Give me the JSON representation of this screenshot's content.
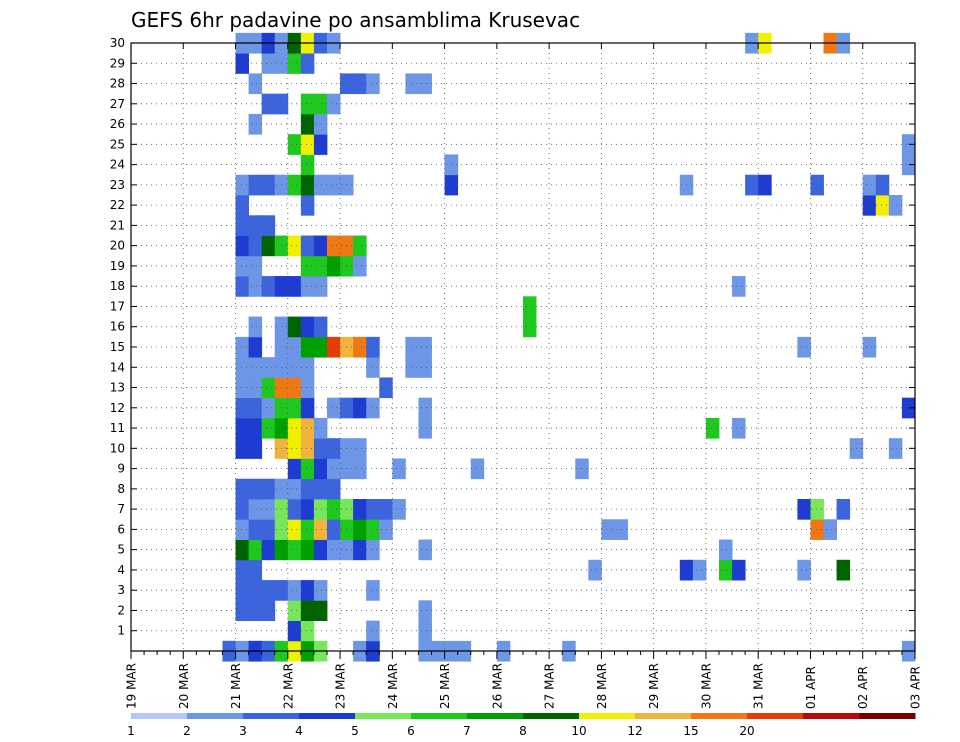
{
  "chart_data": {
    "type": "heatmap",
    "title": "GEFS 6hr padavine po ansamblima Krusevac",
    "x_tick_labels": [
      "19 MAR",
      "20 MAR",
      "21 MAR",
      "22 MAR",
      "23 MAR",
      "24 MAR",
      "25 MAR",
      "26 MAR",
      "27 MAR",
      "28 MAR",
      "29 MAR",
      "30 MAR",
      "31 MAR",
      "01 APR",
      "02 APR",
      "03 APR"
    ],
    "y_tick_labels": [
      "1",
      "2",
      "3",
      "4",
      "5",
      "6",
      "7",
      "8",
      "9",
      "10",
      "11",
      "12",
      "13",
      "14",
      "15",
      "16",
      "17",
      "18",
      "19",
      "20",
      "21",
      "22",
      "23",
      "24",
      "25",
      "26",
      "27",
      "28",
      "29",
      "30"
    ],
    "y_range": [
      0,
      30
    ],
    "time_steps": 60,
    "steps_per_day": 4,
    "grid": true,
    "colorbar": {
      "tick_labels": [
        "1",
        "2",
        "3",
        "4",
        "5",
        "6",
        "7",
        "8",
        "10",
        "12",
        "15",
        "20"
      ],
      "colors": [
        "#b4c8f5",
        "#6e96e6",
        "#3c64dc",
        "#1e3cd2",
        "#78e65a",
        "#1ec81e",
        "#00a000",
        "#006400",
        "#f0f000",
        "#f0b43c",
        "#f07814",
        "#e63c0a",
        "#b40a0a",
        "#780000"
      ]
    },
    "cells": [
      [
        0,
        7,
        1
      ],
      [
        0,
        7,
        2
      ],
      [
        0,
        8,
        1
      ],
      [
        0,
        9,
        2
      ],
      [
        0,
        9,
        3
      ],
      [
        0,
        10,
        2
      ],
      [
        0,
        11,
        5
      ],
      [
        0,
        12,
        8
      ],
      [
        0,
        13,
        6
      ],
      [
        0,
        14,
        4
      ],
      [
        0,
        17,
        1
      ],
      [
        0,
        18,
        2
      ],
      [
        0,
        18,
        3
      ],
      [
        0,
        22,
        1
      ],
      [
        0,
        23,
        1
      ],
      [
        0,
        24,
        1
      ],
      [
        0,
        25,
        1
      ],
      [
        0,
        28,
        1
      ],
      [
        0,
        33,
        1
      ],
      [
        0,
        59,
        1
      ],
      [
        1,
        12,
        3
      ],
      [
        1,
        13,
        4
      ],
      [
        1,
        18,
        1
      ],
      [
        1,
        22,
        1
      ],
      [
        2,
        8,
        2
      ],
      [
        2,
        9,
        2
      ],
      [
        2,
        10,
        2
      ],
      [
        2,
        12,
        4
      ],
      [
        2,
        13,
        7
      ],
      [
        2,
        14,
        7
      ],
      [
        2,
        22,
        1
      ],
      [
        3,
        8,
        2
      ],
      [
        3,
        9,
        2
      ],
      [
        3,
        10,
        2
      ],
      [
        3,
        11,
        2
      ],
      [
        3,
        12,
        1
      ],
      [
        3,
        13,
        3
      ],
      [
        3,
        14,
        1
      ],
      [
        3,
        18,
        1
      ],
      [
        4,
        8,
        2
      ],
      [
        4,
        9,
        2
      ],
      [
        4,
        35,
        1
      ],
      [
        4,
        42,
        3
      ],
      [
        4,
        43,
        1
      ],
      [
        4,
        45,
        5
      ],
      [
        4,
        46,
        3
      ],
      [
        4,
        51,
        1
      ],
      [
        4,
        54,
        7
      ],
      [
        5,
        8,
        7
      ],
      [
        5,
        9,
        5
      ],
      [
        5,
        10,
        3
      ],
      [
        5,
        11,
        6
      ],
      [
        5,
        12,
        5
      ],
      [
        5,
        13,
        6
      ],
      [
        5,
        14,
        3
      ],
      [
        5,
        15,
        1
      ],
      [
        5,
        16,
        1
      ],
      [
        5,
        17,
        3
      ],
      [
        5,
        18,
        1
      ],
      [
        5,
        22,
        1
      ],
      [
        5,
        45,
        1
      ],
      [
        6,
        8,
        1
      ],
      [
        6,
        9,
        2
      ],
      [
        6,
        10,
        2
      ],
      [
        6,
        11,
        4
      ],
      [
        6,
        12,
        8
      ],
      [
        6,
        13,
        5
      ],
      [
        6,
        14,
        9
      ],
      [
        6,
        15,
        2
      ],
      [
        6,
        16,
        5
      ],
      [
        6,
        17,
        6
      ],
      [
        6,
        18,
        5
      ],
      [
        6,
        19,
        1
      ],
      [
        6,
        36,
        1
      ],
      [
        6,
        37,
        1
      ],
      [
        6,
        52,
        10
      ],
      [
        6,
        53,
        1
      ],
      [
        7,
        8,
        2
      ],
      [
        7,
        9,
        1
      ],
      [
        7,
        10,
        1
      ],
      [
        7,
        11,
        4
      ],
      [
        7,
        12,
        2
      ],
      [
        7,
        13,
        3
      ],
      [
        7,
        14,
        4
      ],
      [
        7,
        15,
        5
      ],
      [
        7,
        16,
        4
      ],
      [
        7,
        17,
        3
      ],
      [
        7,
        18,
        2
      ],
      [
        7,
        19,
        2
      ],
      [
        7,
        20,
        1
      ],
      [
        7,
        51,
        3
      ],
      [
        7,
        52,
        4
      ],
      [
        7,
        54,
        2
      ],
      [
        8,
        8,
        2
      ],
      [
        8,
        9,
        2
      ],
      [
        8,
        10,
        2
      ],
      [
        8,
        11,
        1
      ],
      [
        8,
        12,
        1
      ],
      [
        8,
        13,
        2
      ],
      [
        8,
        14,
        2
      ],
      [
        8,
        15,
        2
      ],
      [
        9,
        12,
        3
      ],
      [
        9,
        13,
        5
      ],
      [
        9,
        14,
        3
      ],
      [
        9,
        15,
        1
      ],
      [
        9,
        16,
        1
      ],
      [
        9,
        17,
        1
      ],
      [
        9,
        20,
        1
      ],
      [
        9,
        26,
        1
      ],
      [
        9,
        34,
        1
      ],
      [
        10,
        8,
        3
      ],
      [
        10,
        9,
        3
      ],
      [
        10,
        11,
        9
      ],
      [
        10,
        12,
        8
      ],
      [
        10,
        13,
        9
      ],
      [
        10,
        14,
        2
      ],
      [
        10,
        15,
        2
      ],
      [
        10,
        16,
        1
      ],
      [
        10,
        17,
        1
      ],
      [
        10,
        55,
        1
      ],
      [
        10,
        58,
        1
      ],
      [
        11,
        8,
        3
      ],
      [
        11,
        9,
        3
      ],
      [
        11,
        10,
        5
      ],
      [
        11,
        11,
        6
      ],
      [
        11,
        12,
        8
      ],
      [
        11,
        13,
        9
      ],
      [
        11,
        14,
        1
      ],
      [
        11,
        22,
        1
      ],
      [
        11,
        44,
        5
      ],
      [
        11,
        46,
        1
      ],
      [
        12,
        8,
        2
      ],
      [
        12,
        9,
        2
      ],
      [
        12,
        10,
        1
      ],
      [
        12,
        11,
        5
      ],
      [
        12,
        12,
        5
      ],
      [
        12,
        13,
        3
      ],
      [
        12,
        15,
        1
      ],
      [
        12,
        16,
        2
      ],
      [
        12,
        17,
        3
      ],
      [
        12,
        18,
        1
      ],
      [
        12,
        22,
        1
      ],
      [
        12,
        59,
        3
      ],
      [
        13,
        8,
        1
      ],
      [
        13,
        9,
        1
      ],
      [
        13,
        10,
        5
      ],
      [
        13,
        11,
        10
      ],
      [
        13,
        12,
        10
      ],
      [
        13,
        13,
        1
      ],
      [
        13,
        19,
        2
      ],
      [
        14,
        8,
        1
      ],
      [
        14,
        9,
        1
      ],
      [
        14,
        10,
        1
      ],
      [
        14,
        11,
        1
      ],
      [
        14,
        12,
        1
      ],
      [
        14,
        13,
        1
      ],
      [
        14,
        18,
        1
      ],
      [
        14,
        21,
        1
      ],
      [
        14,
        22,
        1
      ],
      [
        15,
        8,
        1
      ],
      [
        15,
        9,
        3
      ],
      [
        15,
        11,
        1
      ],
      [
        15,
        12,
        1
      ],
      [
        15,
        13,
        6
      ],
      [
        15,
        14,
        6
      ],
      [
        15,
        15,
        11
      ],
      [
        15,
        16,
        9
      ],
      [
        15,
        17,
        10
      ],
      [
        15,
        18,
        2
      ],
      [
        15,
        21,
        1
      ],
      [
        15,
        22,
        1
      ],
      [
        15,
        51,
        1
      ],
      [
        15,
        56,
        1
      ],
      [
        16,
        9,
        1
      ],
      [
        16,
        11,
        1
      ],
      [
        16,
        12,
        7
      ],
      [
        16,
        13,
        3
      ],
      [
        16,
        14,
        2
      ],
      [
        16,
        30,
        5
      ],
      [
        17,
        30,
        5
      ],
      [
        18,
        8,
        2
      ],
      [
        18,
        9,
        1
      ],
      [
        18,
        10,
        2
      ],
      [
        18,
        11,
        3
      ],
      [
        18,
        12,
        3
      ],
      [
        18,
        13,
        1
      ],
      [
        18,
        14,
        1
      ],
      [
        18,
        46,
        1
      ],
      [
        19,
        8,
        1
      ],
      [
        19,
        9,
        1
      ],
      [
        19,
        13,
        5
      ],
      [
        19,
        14,
        5
      ],
      [
        19,
        15,
        6
      ],
      [
        19,
        16,
        5
      ],
      [
        19,
        17,
        1
      ],
      [
        20,
        8,
        3
      ],
      [
        20,
        9,
        2
      ],
      [
        20,
        10,
        7
      ],
      [
        20,
        11,
        5
      ],
      [
        20,
        12,
        8
      ],
      [
        20,
        13,
        2
      ],
      [
        20,
        14,
        3
      ],
      [
        20,
        15,
        10
      ],
      [
        20,
        16,
        10
      ],
      [
        20,
        17,
        5
      ],
      [
        21,
        8,
        2
      ],
      [
        21,
        9,
        2
      ],
      [
        21,
        10,
        2
      ],
      [
        22,
        8,
        2
      ],
      [
        22,
        13,
        2
      ],
      [
        22,
        56,
        3
      ],
      [
        22,
        57,
        8
      ],
      [
        22,
        58,
        1
      ],
      [
        23,
        8,
        1
      ],
      [
        23,
        9,
        2
      ],
      [
        23,
        10,
        2
      ],
      [
        23,
        11,
        1
      ],
      [
        23,
        12,
        5
      ],
      [
        23,
        13,
        7
      ],
      [
        23,
        14,
        1
      ],
      [
        23,
        15,
        1
      ],
      [
        23,
        16,
        1
      ],
      [
        23,
        24,
        3
      ],
      [
        23,
        42,
        1
      ],
      [
        23,
        47,
        2
      ],
      [
        23,
        48,
        3
      ],
      [
        23,
        52,
        2
      ],
      [
        23,
        56,
        1
      ],
      [
        23,
        57,
        2
      ],
      [
        24,
        13,
        5
      ],
      [
        24,
        24,
        3
      ],
      [
        24,
        24,
        1
      ],
      [
        24,
        59,
        1
      ],
      [
        25,
        12,
        5
      ],
      [
        25,
        13,
        8
      ],
      [
        25,
        14,
        3
      ],
      [
        25,
        59,
        1
      ],
      [
        26,
        9,
        1
      ],
      [
        26,
        13,
        7
      ],
      [
        26,
        14,
        1
      ],
      [
        27,
        10,
        2
      ],
      [
        27,
        11,
        2
      ],
      [
        27,
        13,
        5
      ],
      [
        27,
        14,
        5
      ],
      [
        27,
        15,
        1
      ],
      [
        28,
        9,
        1
      ],
      [
        28,
        16,
        2
      ],
      [
        28,
        17,
        2
      ],
      [
        28,
        18,
        1
      ],
      [
        28,
        21,
        1
      ],
      [
        28,
        22,
        1
      ],
      [
        29,
        8,
        3
      ],
      [
        29,
        10,
        1
      ],
      [
        29,
        11,
        1
      ],
      [
        29,
        12,
        5
      ],
      [
        29,
        13,
        2
      ],
      [
        30,
        8,
        1
      ],
      [
        30,
        9,
        1
      ],
      [
        30,
        10,
        3
      ],
      [
        30,
        11,
        1
      ],
      [
        30,
        12,
        7
      ],
      [
        30,
        13,
        8
      ],
      [
        30,
        14,
        2
      ],
      [
        30,
        15,
        1
      ],
      [
        30,
        47,
        1
      ],
      [
        30,
        48,
        8
      ],
      [
        30,
        53,
        10
      ],
      [
        30,
        54,
        1
      ]
    ]
  }
}
